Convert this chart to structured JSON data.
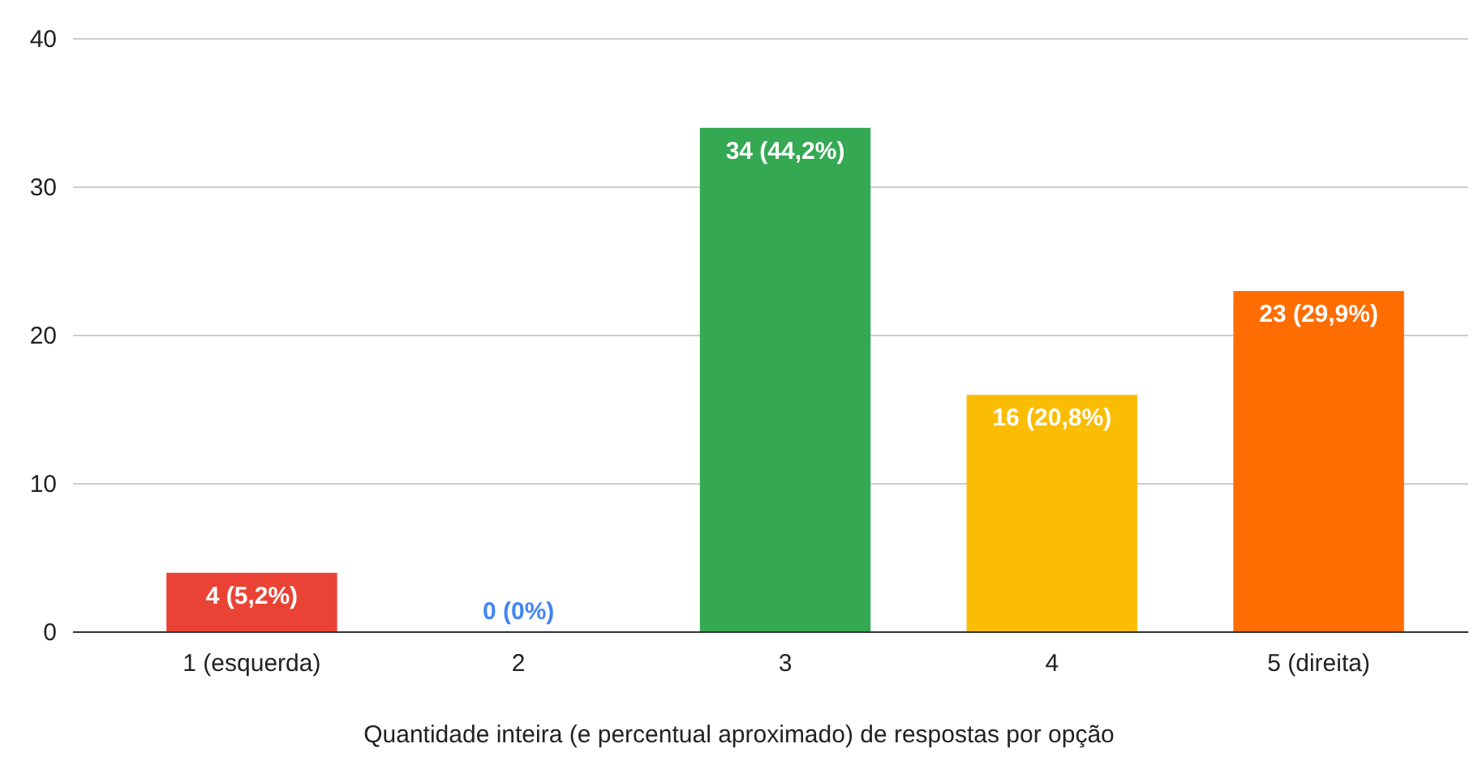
{
  "chart_data": {
    "type": "bar",
    "categories": [
      "1 (esquerda)",
      "2",
      "3",
      "4",
      "5 (direita)"
    ],
    "values": [
      4,
      0,
      34,
      16,
      23
    ],
    "colors": [
      "#ea4335",
      "#4285f4",
      "#34a853",
      "#fbbc04",
      "#ff6d01"
    ],
    "value_labels": [
      "4 (5,2%)",
      "0 (0%)",
      "34 (44,2%)",
      "16 (20,8%)",
      "23 (29,9%)"
    ],
    "xlabel": "Quantidade inteira (e percentual aproximado) de respostas por opção",
    "ylim": [
      0,
      40
    ],
    "yticks": [
      0,
      10,
      20,
      30,
      40
    ],
    "grid": "y"
  }
}
